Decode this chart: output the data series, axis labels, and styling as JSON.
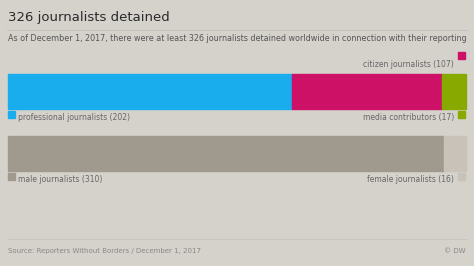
{
  "title": "326 journalists detained",
  "subtitle": "As of December 1, 2017, there were at least 326 journalists detained worldwide in connection with their reporting",
  "source": "Source: Reporters Without Borders / December 1, 2017",
  "copyright": "© DW",
  "bar1": {
    "segments": [
      {
        "label": "professional journalists (202)",
        "value": 202,
        "color": "#1AADEE"
      },
      {
        "label": "citizen journalists (107)",
        "value": 107,
        "color": "#CC1166"
      },
      {
        "label": "media contributors (17)",
        "value": 17,
        "color": "#88AA00"
      }
    ],
    "total": 326
  },
  "bar2": {
    "segments": [
      {
        "label": "male journalists (310)",
        "value": 310,
        "color": "#A09A8E"
      },
      {
        "label": "female journalists (16)",
        "value": 16,
        "color": "#C8C2B8"
      }
    ],
    "total": 326
  },
  "background_color": "#D5D2CC",
  "title_color": "#2A2A2A",
  "subtitle_color": "#555555",
  "source_color": "#888888",
  "label_color": "#666666",
  "title_fontsize": 9.5,
  "subtitle_fontsize": 5.8,
  "source_fontsize": 5.0,
  "label_fontsize": 5.5,
  "swatch_size": 0.006
}
